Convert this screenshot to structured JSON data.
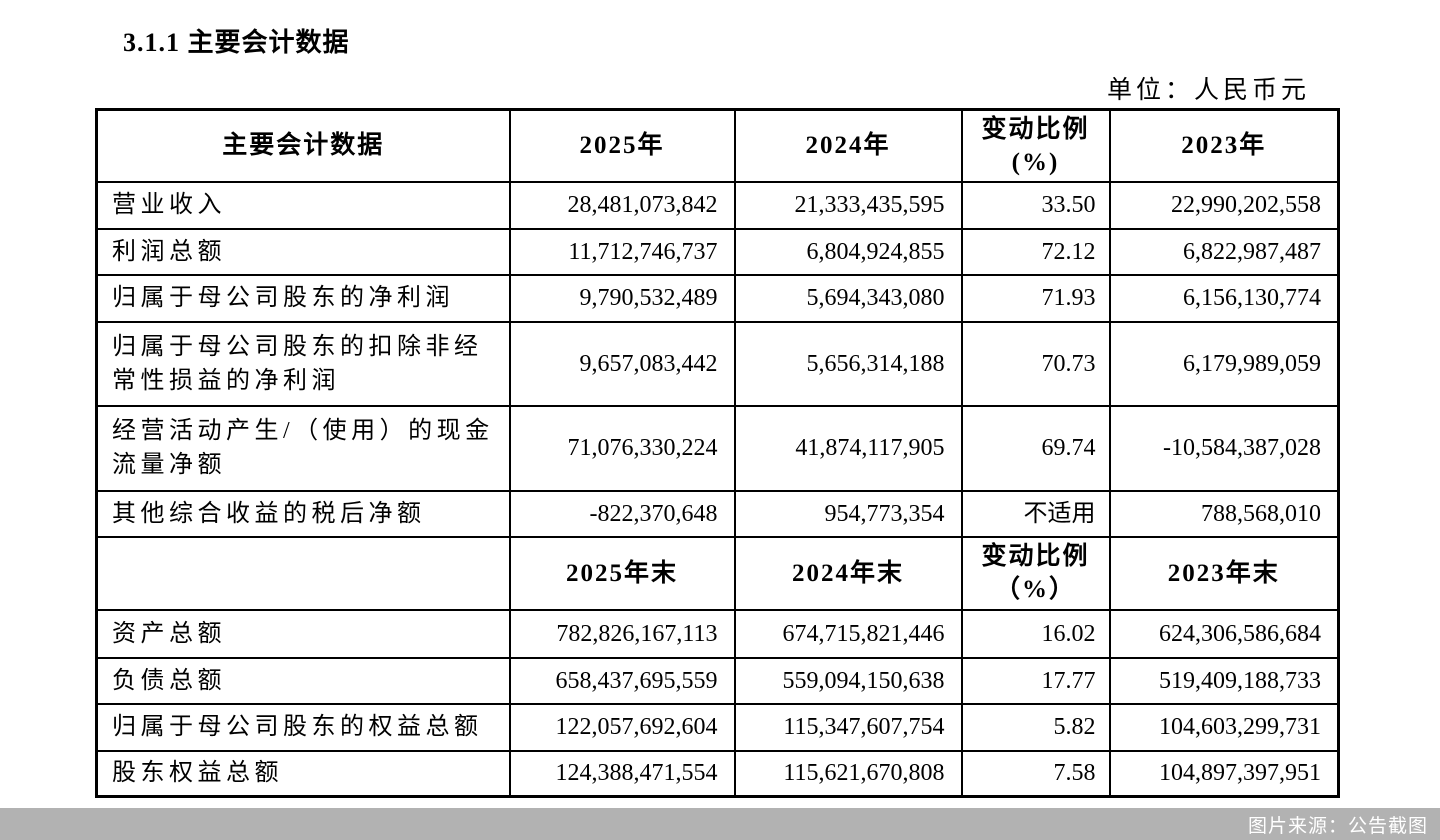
{
  "page": {
    "section_title": "3.1.1  主要会计数据",
    "unit_label": "单位：人民币元",
    "source_caption": "图片来源：公告截图"
  },
  "colors": {
    "text": "#000000",
    "table_border": "#000000",
    "source_bar_bg": "#b2b2b2",
    "source_bar_text": "#ffffff"
  },
  "table": {
    "sections": [
      {
        "header": {
          "col0": "主要会计数据",
          "col1": "2025年",
          "col2": "2024年",
          "col3_line1": "变动比例",
          "col3_line2": "(%)",
          "col4": "2023年"
        },
        "rows": [
          {
            "label": "营业收入",
            "y2025": "28,481,073,842",
            "y2024": "21,333,435,595",
            "change": "33.50",
            "y2023": "22,990,202,558"
          },
          {
            "label": "利润总额",
            "y2025": "11,712,746,737",
            "y2024": "6,804,924,855",
            "change": "72.12",
            "y2023": "6,822,987,487"
          },
          {
            "label": "归属于母公司股东的净利润",
            "y2025": "9,790,532,489",
            "y2024": "5,694,343,080",
            "change": "71.93",
            "y2023": "6,156,130,774"
          },
          {
            "label": "归属于母公司股东的扣除非经常性损益的净利润",
            "y2025": "9,657,083,442",
            "y2024": "5,656,314,188",
            "change": "70.73",
            "y2023": "6,179,989,059"
          },
          {
            "label": "经营活动产生/（使用）的现金流量净额",
            "y2025": "71,076,330,224",
            "y2024": "41,874,117,905",
            "change": "69.74",
            "y2023": "-10,584,387,028"
          },
          {
            "label": "其他综合收益的税后净额",
            "y2025": "-822,370,648",
            "y2024": "954,773,354",
            "change": "不适用",
            "y2023": "788,568,010"
          }
        ]
      },
      {
        "header": {
          "col0": "",
          "col1": "2025年末",
          "col2": "2024年末",
          "col3_line1": "变动比例",
          "col3_line2": "（%）",
          "col4": "2023年末"
        },
        "rows": [
          {
            "label": "资产总额",
            "y2025": "782,826,167,113",
            "y2024": "674,715,821,446",
            "change": "16.02",
            "y2023": "624,306,586,684"
          },
          {
            "label": "负债总额",
            "y2025": "658,437,695,559",
            "y2024": "559,094,150,638",
            "change": "17.77",
            "y2023": "519,409,188,733"
          },
          {
            "label": "归属于母公司股东的权益总额",
            "y2025": "122,057,692,604",
            "y2024": "115,347,607,754",
            "change": "5.82",
            "y2023": "104,603,299,731"
          },
          {
            "label": "股东权益总额",
            "y2025": "124,388,471,554",
            "y2024": "115,621,670,808",
            "change": "7.58",
            "y2023": "104,897,397,951"
          }
        ]
      }
    ]
  }
}
